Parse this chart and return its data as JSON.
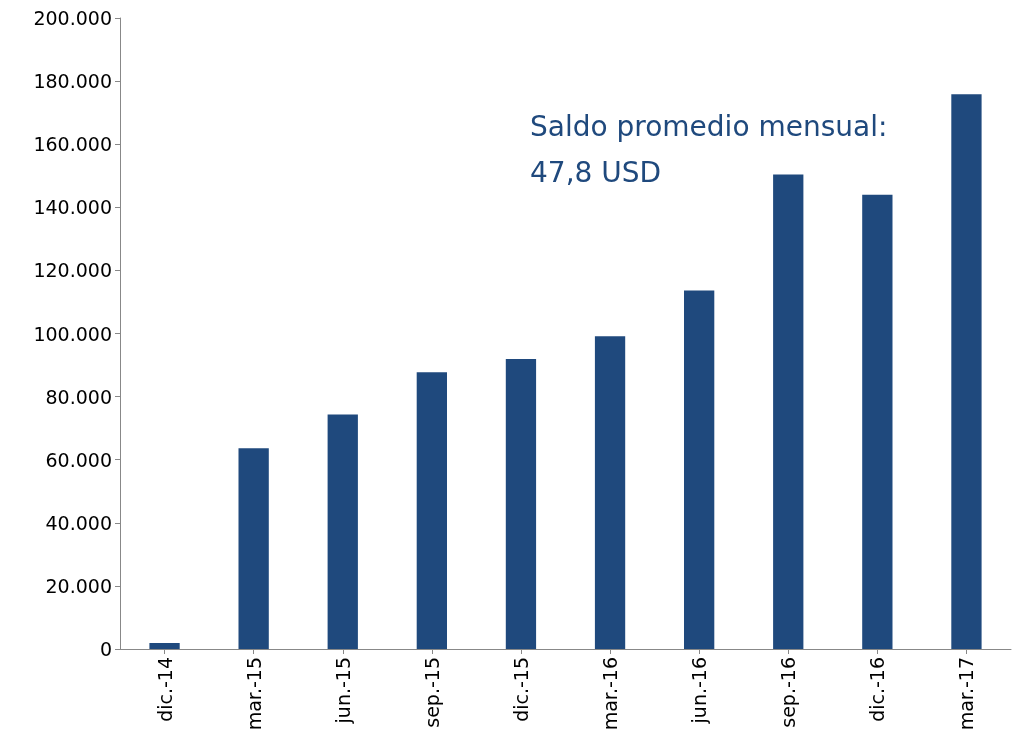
{
  "chart_data": {
    "type": "bar",
    "categories": [
      "dic.-14",
      "mar.-15",
      "jun.-15",
      "sep.-15",
      "dic.-15",
      "mar.-16",
      "jun.-16",
      "sep.-16",
      "dic.-16",
      "mar.-17"
    ],
    "values": [
      1900,
      63600,
      74300,
      87700,
      91900,
      99100,
      113600,
      150400,
      144000,
      175800
    ],
    "color": "#1f497d",
    "ylim": [
      0,
      200000
    ],
    "yticks": [
      {
        "value": 0,
        "label": "0"
      },
      {
        "value": 20000,
        "label": "20.000"
      },
      {
        "value": 40000,
        "label": "40.000"
      },
      {
        "value": 60000,
        "label": "60.000"
      },
      {
        "value": 80000,
        "label": "80.000"
      },
      {
        "value": 100000,
        "label": "100.000"
      },
      {
        "value": 120000,
        "label": "120.000"
      },
      {
        "value": 140000,
        "label": "140.000"
      },
      {
        "value": 160000,
        "label": "160.000"
      },
      {
        "value": 180000,
        "label": "180.000"
      },
      {
        "value": 200000,
        "label": "200.000"
      }
    ],
    "grid": false,
    "annotations": [
      "Saldo promedio mensual:",
      "47,8 USD"
    ]
  }
}
